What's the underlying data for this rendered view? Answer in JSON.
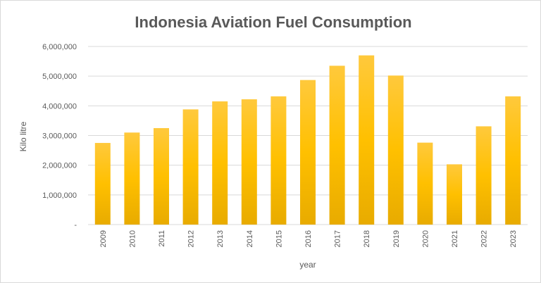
{
  "chart_data": {
    "type": "bar",
    "title": "Indonesia Aviation Fuel Consumption",
    "xlabel": "year",
    "ylabel": "Kilo litre",
    "categories": [
      "2009",
      "2010",
      "2011",
      "2012",
      "2013",
      "2014",
      "2015",
      "2016",
      "2017",
      "2018",
      "2019",
      "2020",
      "2021",
      "2022",
      "2023"
    ],
    "series": [
      {
        "name": "Aviation Fuel Consumption",
        "values": [
          2750000,
          3100000,
          3250000,
          3880000,
          4150000,
          4220000,
          4320000,
          4870000,
          5350000,
          5700000,
          5020000,
          2760000,
          2030000,
          3310000,
          4320000
        ]
      }
    ],
    "ylim": [
      0,
      6000000
    ],
    "yticks": [
      0,
      1000000,
      2000000,
      3000000,
      4000000,
      5000000,
      6000000
    ],
    "ytick_labels": [
      "-",
      "1,000,000",
      "2,000,000",
      "3,000,000",
      "4,000,000",
      "5,000,000",
      "6,000,000"
    ],
    "grid": true,
    "legend": "none",
    "colors": {
      "bar_light": "#ffc93c",
      "bar_mid": "#ffc000",
      "bar_dark": "#e8ab00",
      "grid": "#d9d9d9",
      "text": "#595959"
    }
  }
}
